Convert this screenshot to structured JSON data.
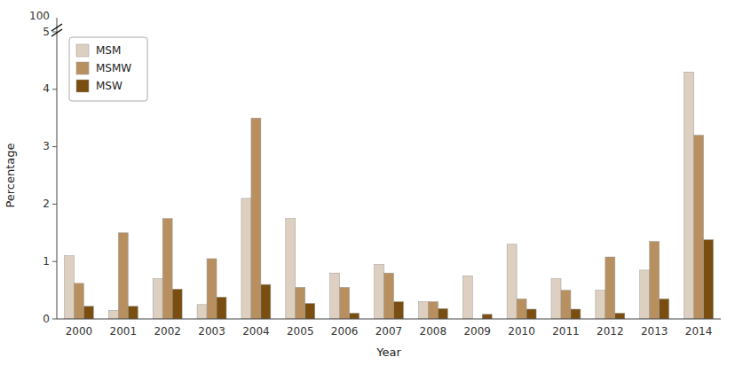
{
  "chart_data": {
    "type": "bar",
    "x_label": "Year",
    "y_label": "Percentage",
    "categories": [
      "2000",
      "2001",
      "2002",
      "2003",
      "2004",
      "2005",
      "2006",
      "2007",
      "2008",
      "2009",
      "2010",
      "2011",
      "2012",
      "2013",
      "2014"
    ],
    "series": [
      {
        "name": "MSM",
        "color": "#ddd0c0",
        "values": [
          1.1,
          0.15,
          0.7,
          0.25,
          2.1,
          1.75,
          0.8,
          0.95,
          0.3,
          0.75,
          1.3,
          0.7,
          0.5,
          0.85,
          4.3
        ]
      },
      {
        "name": "MSMW",
        "color": "#b89060",
        "values": [
          0.62,
          1.5,
          1.75,
          1.05,
          3.5,
          0.55,
          0.55,
          0.8,
          0.3,
          0.0,
          0.35,
          0.5,
          1.08,
          1.35,
          3.2
        ]
      },
      {
        "name": "MSW",
        "color": "#7a4e10",
        "values": [
          0.22,
          0.22,
          0.52,
          0.38,
          0.6,
          0.27,
          0.1,
          0.3,
          0.18,
          0.08,
          0.17,
          0.17,
          0.1,
          0.35,
          1.38
        ]
      }
    ],
    "ylim": [
      0,
      5.0
    ],
    "yticks": [
      0,
      1,
      2,
      3,
      4,
      5
    ],
    "annotations": [
      {
        "text": "100"
      }
    ],
    "legend": "upper left",
    "grid": false
  }
}
